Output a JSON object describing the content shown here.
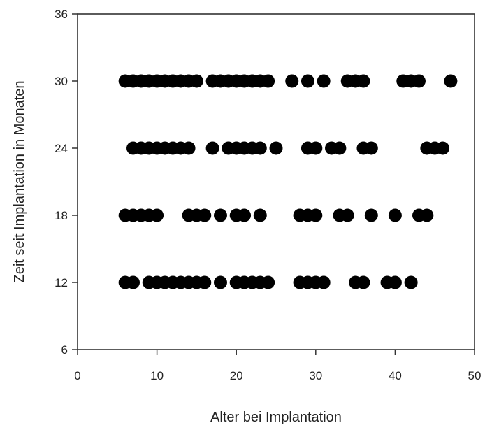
{
  "chart_data": {
    "type": "scatter",
    "xlabel": "Alter bei Implantation",
    "ylabel": "Zeit seit Implantation in Monaten",
    "xlim": [
      0,
      50
    ],
    "ylim": [
      6,
      36
    ],
    "xticks": [
      "0",
      "10",
      "20",
      "30",
      "40",
      "50"
    ],
    "yticks": [
      "6",
      "12",
      "18",
      "24",
      "30",
      "36"
    ],
    "grid": false,
    "legend": "none",
    "marker_color": "#000000",
    "series": [
      {
        "points": [
          [
            6,
            30
          ],
          [
            7,
            30
          ],
          [
            8,
            30
          ],
          [
            9,
            30
          ],
          [
            10,
            30
          ],
          [
            11,
            30
          ],
          [
            12,
            30
          ],
          [
            13,
            30
          ],
          [
            14,
            30
          ],
          [
            15,
            30
          ],
          [
            17,
            30
          ],
          [
            18,
            30
          ],
          [
            19,
            30
          ],
          [
            20,
            30
          ],
          [
            21,
            30
          ],
          [
            22,
            30
          ],
          [
            23,
            30
          ],
          [
            24,
            30
          ],
          [
            27,
            30
          ],
          [
            29,
            30
          ],
          [
            31,
            30
          ],
          [
            34,
            30
          ],
          [
            35,
            30
          ],
          [
            36,
            30
          ],
          [
            41,
            30
          ],
          [
            42,
            30
          ],
          [
            43,
            30
          ],
          [
            47,
            30
          ],
          [
            7,
            24
          ],
          [
            8,
            24
          ],
          [
            9,
            24
          ],
          [
            10,
            24
          ],
          [
            11,
            24
          ],
          [
            12,
            24
          ],
          [
            13,
            24
          ],
          [
            14,
            24
          ],
          [
            17,
            24
          ],
          [
            19,
            24
          ],
          [
            20,
            24
          ],
          [
            21,
            24
          ],
          [
            22,
            24
          ],
          [
            23,
            24
          ],
          [
            25,
            24
          ],
          [
            29,
            24
          ],
          [
            30,
            24
          ],
          [
            32,
            24
          ],
          [
            33,
            24
          ],
          [
            36,
            24
          ],
          [
            37,
            24
          ],
          [
            44,
            24
          ],
          [
            45,
            24
          ],
          [
            46,
            24
          ],
          [
            6,
            18
          ],
          [
            7,
            18
          ],
          [
            8,
            18
          ],
          [
            9,
            18
          ],
          [
            10,
            18
          ],
          [
            14,
            18
          ],
          [
            15,
            18
          ],
          [
            16,
            18
          ],
          [
            18,
            18
          ],
          [
            20,
            18
          ],
          [
            21,
            18
          ],
          [
            23,
            18
          ],
          [
            28,
            18
          ],
          [
            29,
            18
          ],
          [
            30,
            18
          ],
          [
            33,
            18
          ],
          [
            34,
            18
          ],
          [
            37,
            18
          ],
          [
            40,
            18
          ],
          [
            43,
            18
          ],
          [
            44,
            18
          ],
          [
            6,
            12
          ],
          [
            7,
            12
          ],
          [
            9,
            12
          ],
          [
            10,
            12
          ],
          [
            11,
            12
          ],
          [
            12,
            12
          ],
          [
            13,
            12
          ],
          [
            14,
            12
          ],
          [
            15,
            12
          ],
          [
            16,
            12
          ],
          [
            18,
            12
          ],
          [
            20,
            12
          ],
          [
            21,
            12
          ],
          [
            22,
            12
          ],
          [
            23,
            12
          ],
          [
            24,
            12
          ],
          [
            28,
            12
          ],
          [
            29,
            12
          ],
          [
            30,
            12
          ],
          [
            31,
            12
          ],
          [
            35,
            12
          ],
          [
            36,
            12
          ],
          [
            39,
            12
          ],
          [
            40,
            12
          ],
          [
            42,
            12
          ]
        ]
      }
    ]
  }
}
